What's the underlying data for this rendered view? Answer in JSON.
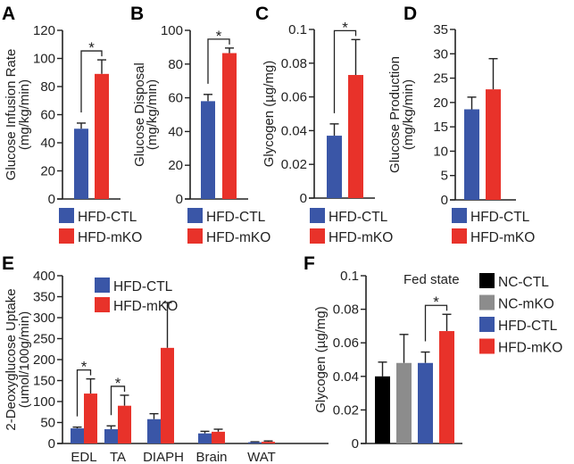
{
  "colors": {
    "HFD-CTL": "#3a56a7",
    "HFD-mKO": "#e8322a",
    "NC-CTL": "#000000",
    "NC-mKO": "#8c8c8c"
  },
  "chart_data": [
    {
      "panel": "A",
      "type": "bar",
      "ylabel": [
        "Glucose Infusion Rate",
        "(mg/kg/min)"
      ],
      "ylim": [
        0,
        120
      ],
      "yticks": [
        0,
        20,
        40,
        60,
        80,
        100,
        120
      ],
      "ytick_labels": [
        "0",
        "20",
        "40",
        "60",
        "80",
        "100",
        "120"
      ],
      "categories": [
        ""
      ],
      "series": [
        {
          "name": "HFD-CTL",
          "values": [
            50
          ],
          "errors": [
            4
          ]
        },
        {
          "name": "HFD-mKO",
          "values": [
            89
          ],
          "errors": [
            10
          ]
        }
      ],
      "significance": [
        {
          "label": "*",
          "between": [
            "HFD-CTL",
            "HFD-mKO"
          ]
        }
      ],
      "legend": [
        "HFD-CTL",
        "HFD-mKO"
      ]
    },
    {
      "panel": "B",
      "type": "bar",
      "ylabel": [
        "Glucose Disposal",
        "(mg/kg/min)"
      ],
      "ylim": [
        0,
        100
      ],
      "yticks": [
        0,
        20,
        40,
        60,
        80,
        100
      ],
      "ytick_labels": [
        "0",
        "20",
        "40",
        "60",
        "80",
        "100"
      ],
      "categories": [
        ""
      ],
      "series": [
        {
          "name": "HFD-CTL",
          "values": [
            58
          ],
          "errors": [
            4
          ]
        },
        {
          "name": "HFD-mKO",
          "values": [
            86.5
          ],
          "errors": [
            3
          ]
        }
      ],
      "significance": [
        {
          "label": "*",
          "between": [
            "HFD-CTL",
            "HFD-mKO"
          ]
        }
      ],
      "legend": [
        "HFD-CTL",
        "HFD-mKO"
      ]
    },
    {
      "panel": "C",
      "type": "bar",
      "ylabel": [
        "Glycogen (µg/mg)"
      ],
      "ylim": [
        0,
        0.1
      ],
      "yticks": [
        0,
        0.02,
        0.04,
        0.06,
        0.08,
        0.1
      ],
      "ytick_labels": [
        "0",
        "0.02",
        "0.04",
        "0.06",
        "0.08",
        "0.1"
      ],
      "categories": [
        ""
      ],
      "series": [
        {
          "name": "HFD-CTL",
          "values": [
            0.037
          ],
          "errors": [
            0.007
          ]
        },
        {
          "name": "HFD-mKO",
          "values": [
            0.073
          ],
          "errors": [
            0.021
          ]
        }
      ],
      "significance": [
        {
          "label": "*",
          "between": [
            "HFD-CTL",
            "HFD-mKO"
          ]
        }
      ],
      "legend": [
        "HFD-CTL",
        "HFD-mKO"
      ]
    },
    {
      "panel": "D",
      "type": "bar",
      "ylabel": [
        "Glucose Production",
        "(mg/kg/min)"
      ],
      "ylim": [
        0,
        35
      ],
      "yticks": [
        0,
        5,
        10,
        15,
        20,
        25,
        30,
        35
      ],
      "ytick_labels": [
        "0",
        "5",
        "10",
        "15",
        "20",
        "25",
        "30",
        "35"
      ],
      "categories": [
        ""
      ],
      "series": [
        {
          "name": "HFD-CTL",
          "values": [
            18.6
          ],
          "errors": [
            2.5
          ]
        },
        {
          "name": "HFD-mKO",
          "values": [
            22.7
          ],
          "errors": [
            6.3
          ]
        }
      ],
      "significance": [],
      "legend": [
        "HFD-CTL",
        "HFD-mKO"
      ]
    },
    {
      "panel": "E",
      "type": "bar",
      "ylabel": [
        "2-Deoxyglucose Uptake",
        "(umol/100g/min)"
      ],
      "ylim": [
        0,
        400
      ],
      "yticks": [
        0,
        50,
        100,
        150,
        200,
        250,
        300,
        350,
        400
      ],
      "ytick_labels": [
        "0",
        "50",
        "100",
        "150",
        "200",
        "250",
        "300",
        "350",
        "400"
      ],
      "categories": [
        "EDL",
        "TA",
        "DIAPH",
        "Brain",
        "WAT"
      ],
      "series": [
        {
          "name": "HFD-CTL",
          "values": [
            36,
            34,
            58,
            24,
            3
          ],
          "errors": [
            3,
            8,
            13,
            5,
            1
          ]
        },
        {
          "name": "HFD-mKO",
          "values": [
            119,
            90,
            228,
            28,
            4
          ],
          "errors": [
            35,
            25,
            108,
            6,
            2
          ]
        }
      ],
      "significance": [
        {
          "label": "*",
          "category": "EDL"
        },
        {
          "label": "*",
          "category": "TA"
        }
      ],
      "legend": [
        "HFD-CTL",
        "HFD-mKO"
      ]
    },
    {
      "panel": "F",
      "type": "bar",
      "title": "Fed state",
      "ylabel": [
        "Glycogen (µg/mg)"
      ],
      "ylim": [
        0,
        0.1
      ],
      "yticks": [
        0,
        0.02,
        0.04,
        0.06,
        0.08,
        0.1
      ],
      "ytick_labels": [
        "0",
        "0.02",
        "0.04",
        "0.06",
        "0.08",
        "0.1"
      ],
      "categories": [
        ""
      ],
      "series": [
        {
          "name": "NC-CTL",
          "values": [
            0.04
          ],
          "errors": [
            0.0085
          ]
        },
        {
          "name": "NC-mKO",
          "values": [
            0.048
          ],
          "errors": [
            0.017
          ]
        },
        {
          "name": "HFD-CTL",
          "values": [
            0.048
          ],
          "errors": [
            0.0065
          ]
        },
        {
          "name": "HFD-mKO",
          "values": [
            0.067
          ],
          "errors": [
            0.01
          ]
        }
      ],
      "significance": [
        {
          "label": "*",
          "between": [
            "HFD-CTL",
            "HFD-mKO"
          ]
        }
      ],
      "legend": [
        "NC-CTL",
        "NC-mKO",
        "HFD-CTL",
        "HFD-mKO"
      ]
    }
  ]
}
